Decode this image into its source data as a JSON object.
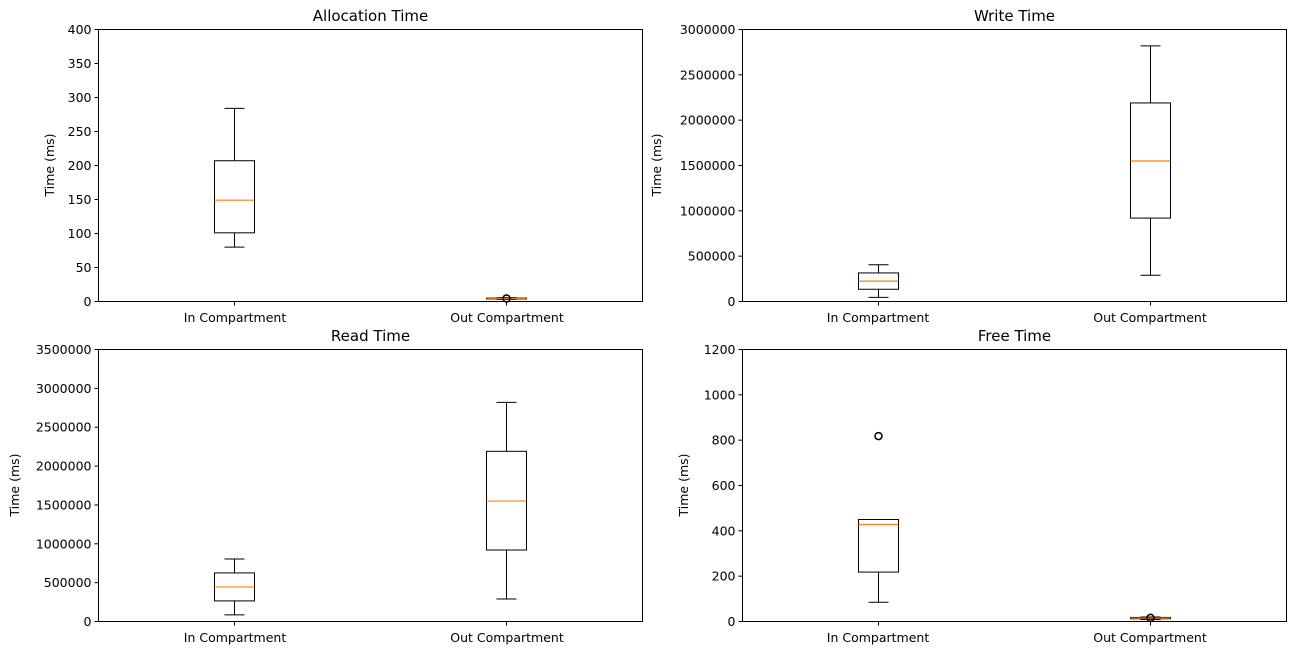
{
  "chart_data": [
    {
      "type": "box",
      "title": "Allocation Time",
      "xlabel": "",
      "ylabel": "Time (ms)",
      "ylim": [
        0,
        400
      ],
      "yticks": [
        0,
        50,
        100,
        150,
        200,
        250,
        300,
        350,
        400
      ],
      "yticklabels": [
        "0",
        "50",
        "100",
        "150",
        "200",
        "250",
        "300",
        "350",
        "400"
      ],
      "categories": [
        "In Compartment",
        "Out Compartment"
      ],
      "boxes": [
        {
          "whisker_low": 80,
          "q1": 101,
          "median": 149,
          "q3": 207,
          "whisker_high": 284,
          "outliers": []
        },
        {
          "whisker_low": 3,
          "q1": 3.5,
          "median": 4,
          "q3": 5,
          "whisker_high": 5.5,
          "outliers": [
            4.5
          ]
        }
      ]
    },
    {
      "type": "box",
      "title": "Write Time",
      "xlabel": "",
      "ylabel": "Time (ms)",
      "ylim": [
        0,
        3000000
      ],
      "yticks": [
        0,
        500000,
        1000000,
        1500000,
        2000000,
        2500000,
        3000000
      ],
      "yticklabels": [
        "0",
        "500000",
        "1000000",
        "1500000",
        "2000000",
        "2500000",
        "3000000"
      ],
      "categories": [
        "In Compartment",
        "Out Compartment"
      ],
      "boxes": [
        {
          "whisker_low": 45000,
          "q1": 135000,
          "median": 225000,
          "q3": 315000,
          "whisker_high": 405000,
          "outliers": []
        },
        {
          "whisker_low": 290000,
          "q1": 920000,
          "median": 1550000,
          "q3": 2190000,
          "whisker_high": 2820000,
          "outliers": []
        }
      ]
    },
    {
      "type": "box",
      "title": "Read Time",
      "xlabel": "",
      "ylabel": "Time (ms)",
      "ylim": [
        0,
        3500000
      ],
      "yticks": [
        0,
        500000,
        1000000,
        1500000,
        2000000,
        2500000,
        3000000,
        3500000
      ],
      "yticklabels": [
        "0",
        "500000",
        "1000000",
        "1500000",
        "2000000",
        "2500000",
        "3000000",
        "3500000"
      ],
      "categories": [
        "In Compartment",
        "Out Compartment"
      ],
      "boxes": [
        {
          "whisker_low": 85000,
          "q1": 265000,
          "median": 445000,
          "q3": 625000,
          "whisker_high": 805000,
          "outliers": []
        },
        {
          "whisker_low": 290000,
          "q1": 920000,
          "median": 1550000,
          "q3": 2190000,
          "whisker_high": 2820000,
          "outliers": []
        }
      ]
    },
    {
      "type": "box",
      "title": "Free Time",
      "xlabel": "",
      "ylabel": "Time (ms)",
      "ylim": [
        0,
        1200
      ],
      "yticks": [
        0,
        200,
        400,
        600,
        800,
        1000,
        1200
      ],
      "yticklabels": [
        "0",
        "200",
        "400",
        "600",
        "800",
        "1000",
        "1200"
      ],
      "categories": [
        "In Compartment",
        "Out Compartment"
      ],
      "boxes": [
        {
          "whisker_low": 85,
          "q1": 218,
          "median": 428,
          "q3": 450,
          "whisker_high": 450,
          "outliers": [
            818
          ]
        },
        {
          "whisker_low": 8,
          "q1": 12,
          "median": 15,
          "q3": 18,
          "whisker_high": 20,
          "outliers": [
            16
          ]
        }
      ]
    }
  ],
  "colors": {
    "box": "#000000",
    "median": "#ff7f0e",
    "background": "#ffffff"
  }
}
